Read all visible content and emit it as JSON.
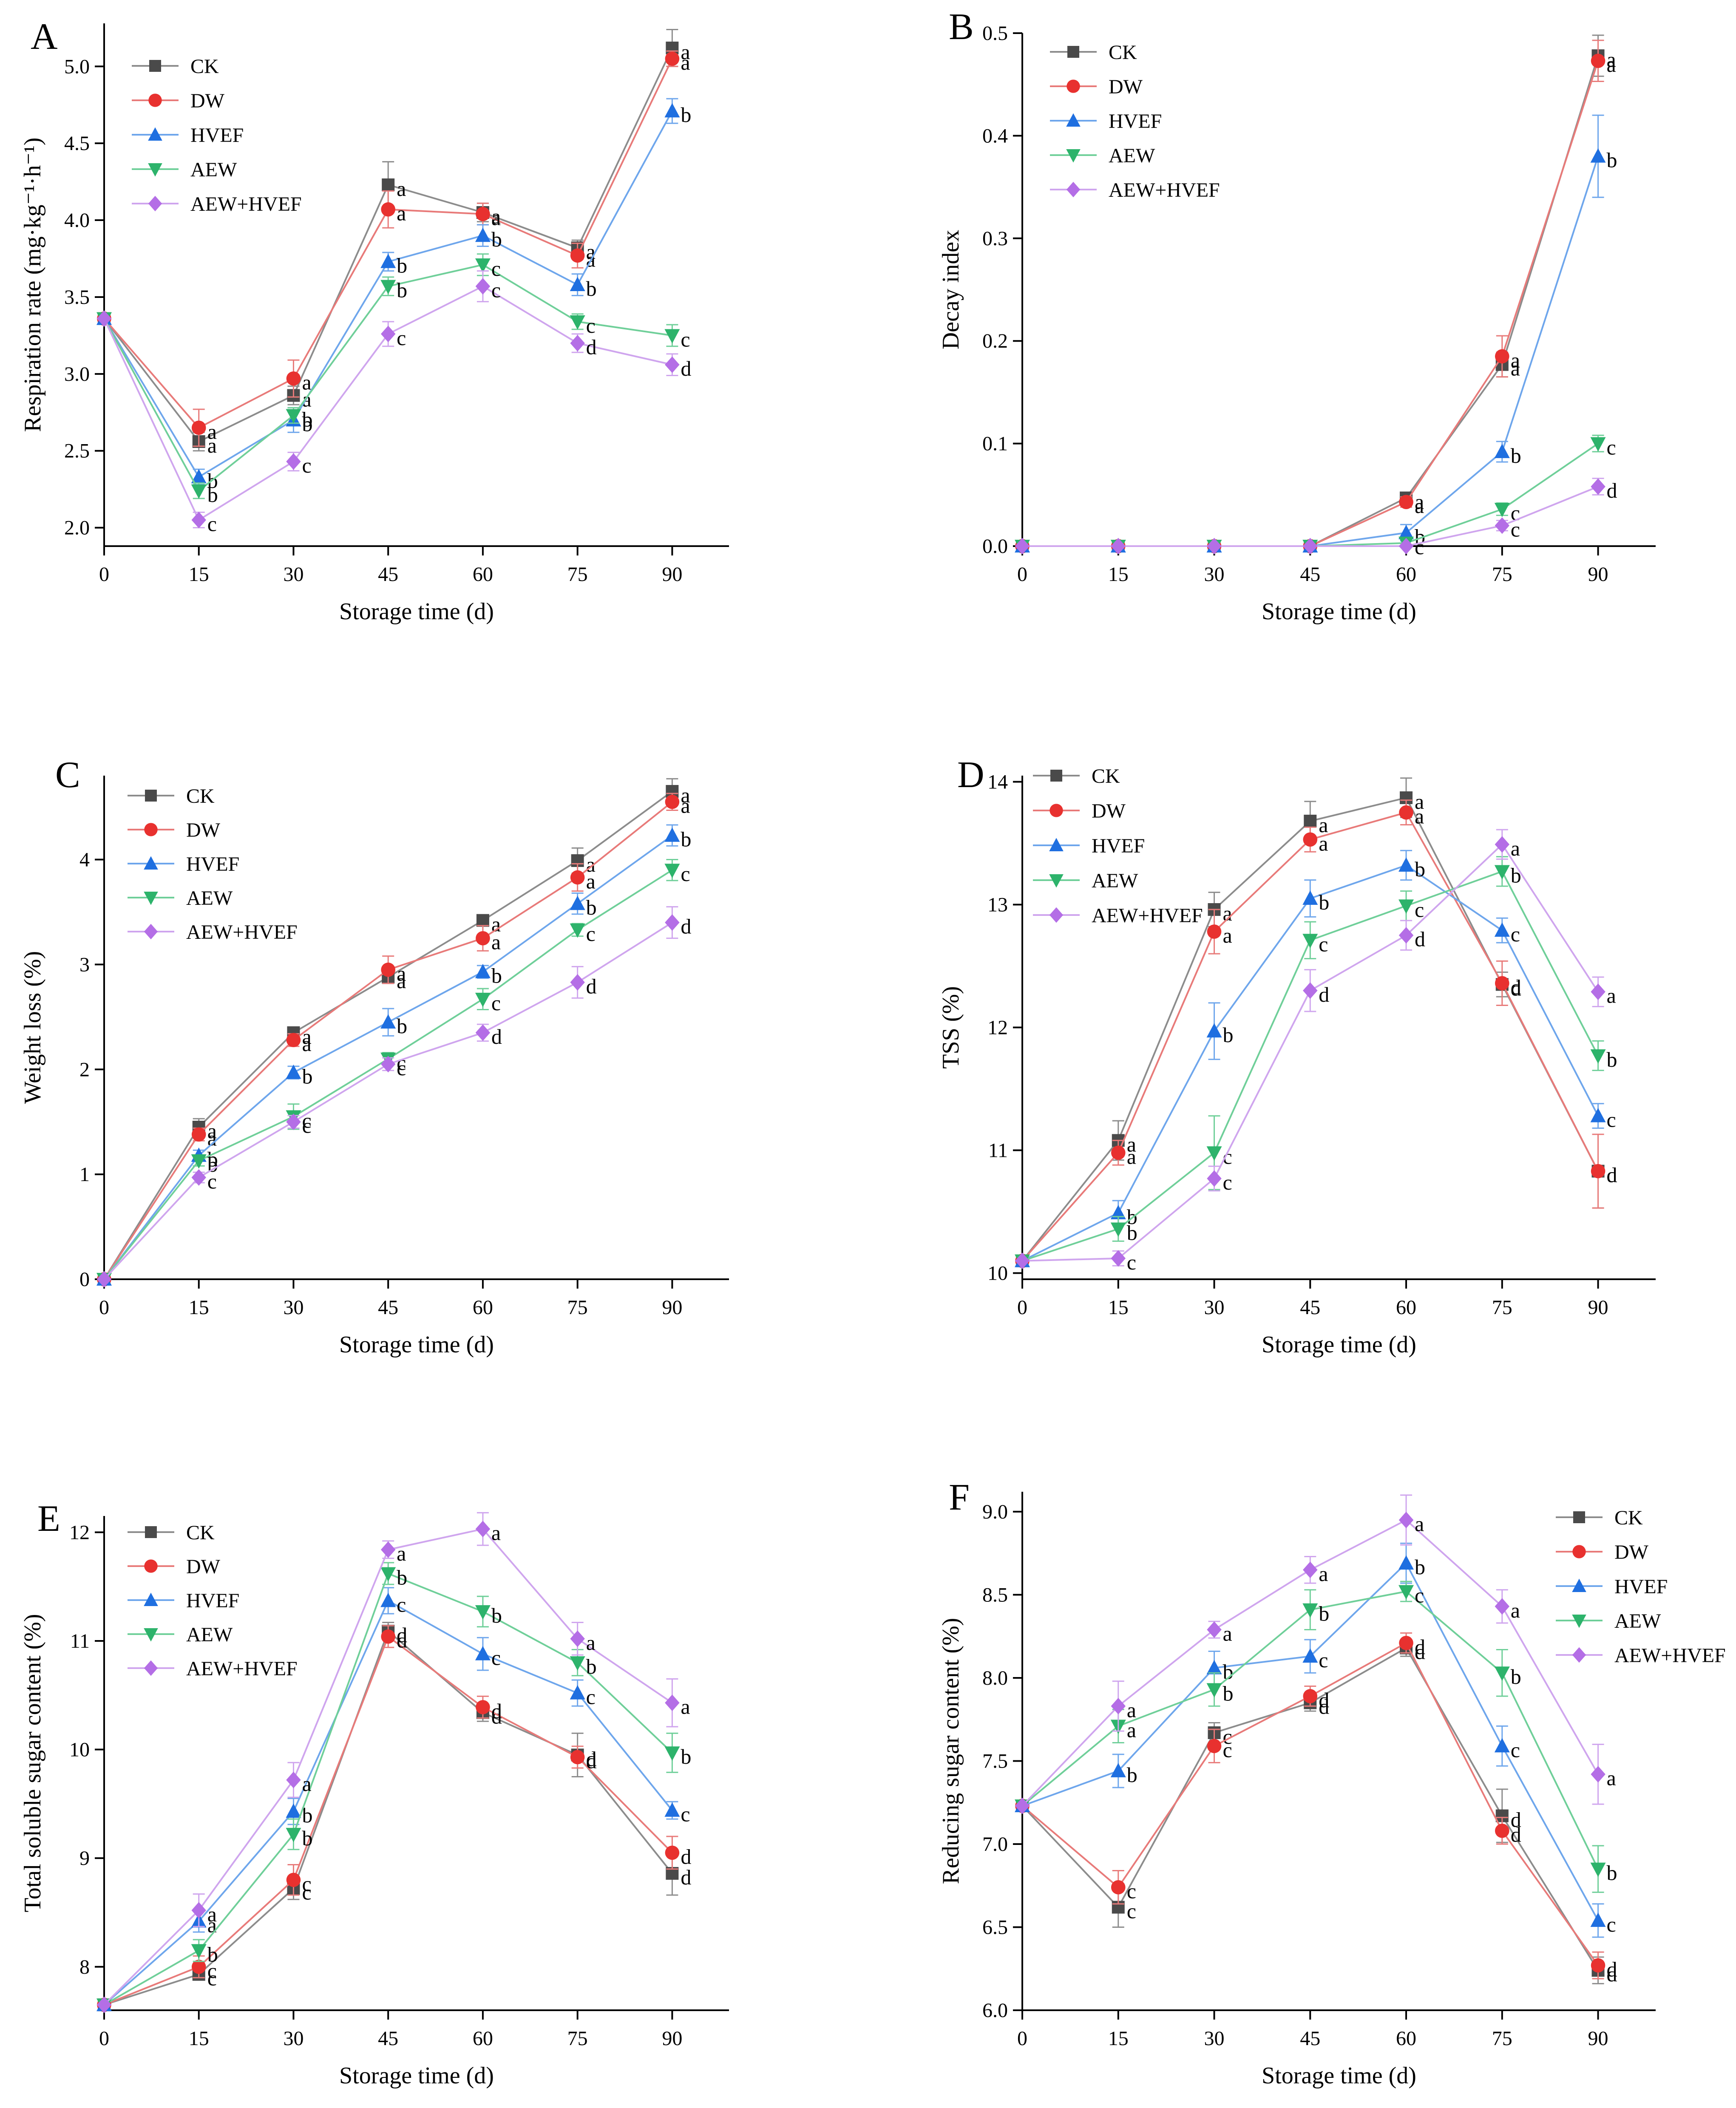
{
  "series_styles": [
    {
      "name": "CK",
      "color": "#4a4a4a",
      "line": "#8c8c8c",
      "marker": "square"
    },
    {
      "name": "DW",
      "color": "#e8312f",
      "line": "#e87a79",
      "marker": "circle"
    },
    {
      "name": "HVEF",
      "color": "#1f6fe0",
      "line": "#6ea6ec",
      "marker": "triangle-up"
    },
    {
      "name": "AEW",
      "color": "#2db36b",
      "line": "#6fcf99",
      "marker": "triangle-down"
    },
    {
      "name": "AEW+HVEF",
      "color": "#b46ee6",
      "line": "#cfa5ee",
      "marker": "diamond"
    }
  ],
  "chart_data": [
    {
      "panel": "A",
      "type": "line",
      "xlabel": "Storage time (d)",
      "ylabel": "Respiration rate (mg·kg⁻¹·h⁻¹)",
      "x": [
        0,
        15,
        30,
        45,
        60,
        75,
        90
      ],
      "xlim": [
        0,
        99
      ],
      "ylim": [
        1.88,
        5.28
      ],
      "yticks": [
        2.0,
        2.5,
        3.0,
        3.5,
        4.0,
        4.5,
        5.0
      ],
      "ytick_labels": [
        "2.0",
        "2.5",
        "3.0",
        "3.5",
        "4.0",
        "4.5",
        "5.0"
      ],
      "legend_position": "top-left",
      "series": [
        {
          "name": "CK",
          "values": [
            3.36,
            2.56,
            2.86,
            4.23,
            4.05,
            3.82,
            5.12
          ],
          "errors": [
            0,
            0.06,
            0.06,
            0.15,
            0.06,
            0.05,
            0.12
          ],
          "letters": [
            "",
            "a",
            "a",
            "a",
            "a",
            "a",
            "a"
          ]
        },
        {
          "name": "DW",
          "values": [
            3.36,
            2.65,
            2.97,
            4.07,
            4.04,
            3.77,
            5.05
          ],
          "errors": [
            0,
            0.12,
            0.12,
            0.12,
            0.07,
            0.08,
            0.05
          ],
          "letters": [
            "",
            "a",
            "a",
            "a",
            "a",
            "a",
            "a"
          ]
        },
        {
          "name": "HVEF",
          "values": [
            3.36,
            2.33,
            2.7,
            3.73,
            3.9,
            3.58,
            4.71
          ],
          "errors": [
            0,
            0.05,
            0.08,
            0.06,
            0.07,
            0.07,
            0.08
          ],
          "letters": [
            "",
            "b",
            "b",
            "b",
            "b",
            "b",
            "b"
          ]
        },
        {
          "name": "AEW",
          "values": [
            3.36,
            2.24,
            2.73,
            3.57,
            3.71,
            3.34,
            3.25
          ],
          "errors": [
            0,
            0.05,
            0.05,
            0.06,
            0.07,
            0.05,
            0.07
          ],
          "letters": [
            "",
            "b",
            "b",
            "b",
            "c",
            "c",
            "c"
          ]
        },
        {
          "name": "AEW+HVEF",
          "values": [
            3.36,
            2.05,
            2.43,
            3.26,
            3.57,
            3.2,
            3.06
          ],
          "errors": [
            0,
            0.05,
            0.06,
            0.08,
            0.1,
            0.06,
            0.07
          ],
          "letters": [
            "",
            "c",
            "c",
            "c",
            "c",
            "d",
            "d"
          ]
        }
      ]
    },
    {
      "panel": "B",
      "type": "line",
      "xlabel": "Storage time (d)",
      "ylabel": "Decay index",
      "x": [
        0,
        15,
        30,
        45,
        60,
        75,
        90
      ],
      "xlim": [
        0,
        99
      ],
      "ylim": [
        0.0,
        0.5
      ],
      "yticks": [
        0.0,
        0.1,
        0.2,
        0.3,
        0.4,
        0.5
      ],
      "ytick_labels": [
        "0.0",
        "0.1",
        "0.2",
        "0.3",
        "0.4",
        "0.5"
      ],
      "legend_position": "top-left",
      "series": [
        {
          "name": "CK",
          "values": [
            0,
            0,
            0,
            0,
            0.047,
            0.177,
            0.478
          ],
          "errors": [
            0,
            0,
            0,
            0,
            0.005,
            0.012,
            0.02
          ],
          "letters": [
            "",
            "",
            "",
            "",
            "a",
            "a",
            "a"
          ]
        },
        {
          "name": "DW",
          "values": [
            0,
            0,
            0,
            0,
            0.043,
            0.185,
            0.473
          ],
          "errors": [
            0,
            0,
            0,
            0,
            0.005,
            0.02,
            0.02
          ],
          "letters": [
            "",
            "",
            "",
            "",
            "a",
            "a",
            "a"
          ]
        },
        {
          "name": "HVEF",
          "values": [
            0,
            0,
            0,
            0,
            0.013,
            0.092,
            0.38
          ],
          "errors": [
            0,
            0,
            0,
            0,
            0.008,
            0.01,
            0.04
          ],
          "letters": [
            "",
            "",
            "",
            "",
            "b",
            "b",
            "b"
          ]
        },
        {
          "name": "AEW",
          "values": [
            0,
            0,
            0,
            0,
            0.003,
            0.036,
            0.1
          ],
          "errors": [
            0,
            0,
            0,
            0,
            0.003,
            0.006,
            0.008
          ],
          "letters": [
            "",
            "",
            "",
            "",
            "c",
            "c",
            "c"
          ]
        },
        {
          "name": "AEW+HVEF",
          "values": [
            0,
            0,
            0,
            0,
            0,
            0.02,
            0.058
          ],
          "errors": [
            0,
            0,
            0,
            0,
            0,
            0.005,
            0.008
          ],
          "letters": [
            "",
            "",
            "",
            "",
            "",
            "c",
            "d"
          ]
        }
      ]
    },
    {
      "panel": "C",
      "type": "line",
      "xlabel": "Storage time (d)",
      "ylabel": "Weight loss (%)",
      "x": [
        0,
        15,
        30,
        45,
        60,
        75,
        90
      ],
      "xlim": [
        0,
        99
      ],
      "ylim": [
        0,
        4.8
      ],
      "yticks": [
        0,
        1,
        2,
        3,
        4
      ],
      "ytick_labels": [
        "0",
        "1",
        "2",
        "3",
        "4"
      ],
      "legend_position": "top-left",
      "series": [
        {
          "name": "CK",
          "values": [
            0,
            1.45,
            2.35,
            2.88,
            3.42,
            3.99,
            4.65
          ],
          "errors": [
            0,
            0.08,
            0.05,
            0.06,
            0.05,
            0.12,
            0.12
          ],
          "letters": [
            "",
            "a",
            "a",
            "a",
            "a",
            "a",
            "a"
          ]
        },
        {
          "name": "DW",
          "values": [
            0,
            1.38,
            2.28,
            2.95,
            3.25,
            3.83,
            4.55
          ],
          "errors": [
            0,
            0.06,
            0.06,
            0.13,
            0.12,
            0.13,
            0.08
          ],
          "letters": [
            "",
            "a",
            "a",
            "a",
            "a",
            "a",
            "a"
          ]
        },
        {
          "name": "HVEF",
          "values": [
            0,
            1.18,
            1.97,
            2.45,
            2.93,
            3.58,
            4.23
          ],
          "errors": [
            0,
            0.05,
            0.06,
            0.13,
            0.06,
            0.1,
            0.1
          ],
          "letters": [
            "",
            "b",
            "b",
            "b",
            "b",
            "b",
            "b"
          ]
        },
        {
          "name": "AEW",
          "values": [
            0,
            1.13,
            1.55,
            2.1,
            2.67,
            3.33,
            3.9
          ],
          "errors": [
            0,
            0.05,
            0.12,
            0.06,
            0.1,
            0.06,
            0.1
          ],
          "letters": [
            "",
            "b",
            "c",
            "c",
            "c",
            "c",
            "c"
          ]
        },
        {
          "name": "AEW+HVEF",
          "values": [
            0,
            0.97,
            1.5,
            2.05,
            2.35,
            2.83,
            3.4
          ],
          "errors": [
            0,
            0.05,
            0.06,
            0.06,
            0.08,
            0.15,
            0.15
          ],
          "letters": [
            "",
            "c",
            "c",
            "c",
            "d",
            "d",
            "d"
          ]
        }
      ]
    },
    {
      "panel": "D",
      "type": "line",
      "xlabel": "Storage time (d)",
      "ylabel": "TSS (%)",
      "x": [
        0,
        15,
        30,
        45,
        60,
        75,
        90
      ],
      "xlim": [
        0,
        99
      ],
      "ylim": [
        9.95,
        14.05
      ],
      "yticks": [
        10,
        11,
        12,
        13,
        14
      ],
      "ytick_labels": [
        "10",
        "11",
        "12",
        "13",
        "14"
      ],
      "legend_position": "top-left",
      "series": [
        {
          "name": "CK",
          "values": [
            10.1,
            11.08,
            12.96,
            13.68,
            13.87,
            12.35,
            10.83
          ],
          "errors": [
            0,
            0.16,
            0.14,
            0.16,
            0.16,
            0.1,
            0.3
          ],
          "letters": [
            "",
            "a",
            "a",
            "a",
            "a",
            "d",
            "d"
          ]
        },
        {
          "name": "DW",
          "values": [
            10.1,
            10.98,
            12.78,
            13.53,
            13.75,
            12.36,
            10.83
          ],
          "errors": [
            0,
            0.1,
            0.18,
            0.1,
            0.1,
            0.18,
            0.3
          ],
          "letters": [
            "",
            "a",
            "a",
            "a",
            "a",
            "d",
            "d"
          ]
        },
        {
          "name": "HVEF",
          "values": [
            10.1,
            10.49,
            11.97,
            13.05,
            13.32,
            12.79,
            11.28
          ],
          "errors": [
            0,
            0.1,
            0.23,
            0.15,
            0.12,
            0.1,
            0.1
          ],
          "letters": [
            "",
            "b",
            "b",
            "b",
            "b",
            "c",
            "c"
          ]
        },
        {
          "name": "AEW",
          "values": [
            10.1,
            10.36,
            10.98,
            12.71,
            12.99,
            13.27,
            11.77
          ],
          "errors": [
            0,
            0.1,
            0.3,
            0.15,
            0.12,
            0.12,
            0.12
          ],
          "letters": [
            "",
            "b",
            "c",
            "c",
            "c",
            "b",
            "b"
          ]
        },
        {
          "name": "AEW+HVEF",
          "values": [
            10.1,
            10.12,
            10.77,
            12.3,
            12.75,
            13.49,
            12.29
          ],
          "errors": [
            0,
            0.06,
            0.1,
            0.17,
            0.12,
            0.12,
            0.12
          ],
          "letters": [
            "",
            "c",
            "c",
            "d",
            "d",
            "a",
            "a"
          ]
        }
      ]
    },
    {
      "panel": "E",
      "type": "line",
      "xlabel": "Storage time (d)",
      "ylabel": "Total soluble sugar content (%)",
      "x": [
        0,
        15,
        30,
        45,
        60,
        75,
        90
      ],
      "xlim": [
        0,
        99
      ],
      "ylim": [
        7.6,
        12.15
      ],
      "yticks": [
        8,
        9,
        10,
        11,
        12
      ],
      "ytick_labels": [
        "8",
        "9",
        "10",
        "11",
        "12"
      ],
      "legend_position": "top-left",
      "series": [
        {
          "name": "CK",
          "values": [
            7.65,
            7.93,
            8.72,
            11.09,
            10.34,
            9.95,
            8.86
          ],
          "errors": [
            0,
            0.05,
            0.1,
            0.08,
            0.08,
            0.2,
            0.2
          ],
          "letters": [
            "",
            "c",
            "c",
            "d",
            "d",
            "d",
            "d"
          ]
        },
        {
          "name": "DW",
          "values": [
            7.65,
            8.0,
            8.8,
            11.04,
            10.39,
            9.93,
            9.05
          ],
          "errors": [
            0,
            0.1,
            0.14,
            0.1,
            0.1,
            0.1,
            0.15
          ],
          "letters": [
            "",
            "c",
            "c",
            "d",
            "d",
            "d",
            "d"
          ]
        },
        {
          "name": "HVEF",
          "values": [
            7.65,
            8.42,
            9.43,
            11.37,
            10.88,
            10.52,
            9.44
          ],
          "errors": [
            0,
            0.1,
            0.12,
            0.12,
            0.15,
            0.12,
            0.08
          ],
          "letters": [
            "",
            "a",
            "b",
            "c",
            "c",
            "c",
            "c"
          ]
        },
        {
          "name": "AEW",
          "values": [
            7.65,
            8.15,
            9.22,
            11.62,
            11.27,
            10.8,
            9.97
          ],
          "errors": [
            0,
            0.1,
            0.14,
            0.1,
            0.14,
            0.12,
            0.18
          ],
          "letters": [
            "",
            "b",
            "b",
            "b",
            "b",
            "b",
            "b"
          ]
        },
        {
          "name": "AEW+HVEF",
          "values": [
            7.65,
            8.52,
            9.72,
            11.84,
            12.03,
            11.02,
            10.43
          ],
          "errors": [
            0,
            0.15,
            0.16,
            0.08,
            0.15,
            0.15,
            0.22
          ],
          "letters": [
            "",
            "a",
            "a",
            "a",
            "a",
            "a",
            "a"
          ]
        }
      ]
    },
    {
      "panel": "F",
      "type": "line",
      "xlabel": "Storage time (d)",
      "ylabel": "Reducing sugar content (%)",
      "x": [
        0,
        15,
        30,
        45,
        60,
        75,
        90
      ],
      "xlim": [
        0,
        99
      ],
      "ylim": [
        6.0,
        9.12
      ],
      "yticks": [
        6.0,
        6.5,
        7.0,
        7.5,
        8.0,
        8.5,
        9.0
      ],
      "ytick_labels": [
        "6.0",
        "6.5",
        "7.0",
        "7.5",
        "8.0",
        "8.5",
        "9.0"
      ],
      "legend_position": "top-right",
      "series": [
        {
          "name": "CK",
          "values": [
            7.23,
            6.62,
            7.67,
            7.85,
            8.18,
            7.17,
            6.24
          ],
          "errors": [
            0,
            0.12,
            0.06,
            0.05,
            0.05,
            0.16,
            0.08
          ],
          "letters": [
            "",
            "c",
            "c",
            "d",
            "d",
            "d",
            "d"
          ]
        },
        {
          "name": "DW",
          "values": [
            7.23,
            6.74,
            7.59,
            7.89,
            8.21,
            7.08,
            6.27
          ],
          "errors": [
            0,
            0.1,
            0.1,
            0.06,
            0.06,
            0.08,
            0.08
          ],
          "letters": [
            "",
            "c",
            "c",
            "d",
            "d",
            "d",
            "d"
          ]
        },
        {
          "name": "HVEF",
          "values": [
            7.23,
            7.44,
            8.06,
            8.13,
            8.69,
            7.59,
            6.54
          ],
          "errors": [
            0,
            0.1,
            0.1,
            0.1,
            0.12,
            0.12,
            0.1
          ],
          "letters": [
            "",
            "b",
            "b",
            "c",
            "b",
            "c",
            "c"
          ]
        },
        {
          "name": "AEW",
          "values": [
            7.23,
            7.71,
            7.93,
            8.41,
            8.52,
            8.03,
            6.85
          ],
          "errors": [
            0,
            0.1,
            0.1,
            0.12,
            0.06,
            0.14,
            0.14
          ],
          "letters": [
            "",
            "a",
            "b",
            "b",
            "c",
            "b",
            "b"
          ]
        },
        {
          "name": "AEW+HVEF",
          "values": [
            7.23,
            7.83,
            8.29,
            8.65,
            8.95,
            8.43,
            7.42
          ],
          "errors": [
            0,
            0.15,
            0.05,
            0.08,
            0.15,
            0.1,
            0.18
          ],
          "letters": [
            "",
            "a",
            "a",
            "a",
            "a",
            "a",
            "a"
          ]
        }
      ]
    }
  ]
}
